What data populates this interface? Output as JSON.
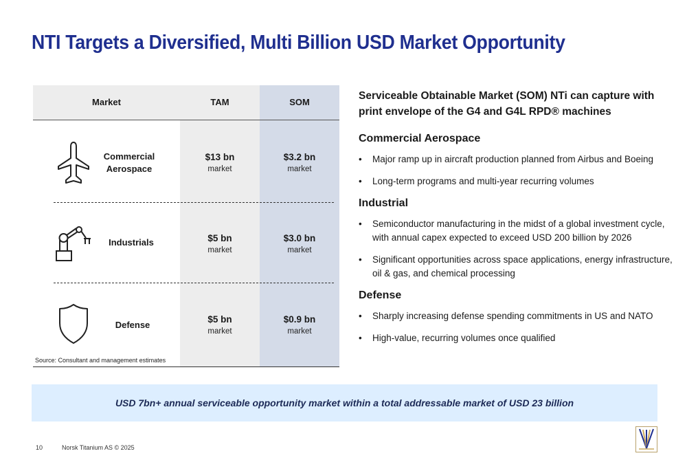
{
  "title": "NTI Targets a Diversified, Multi Billion USD Market Opportunity",
  "table": {
    "headers": {
      "market": "Market",
      "tam": "TAM",
      "som": "SOM"
    },
    "rows": [
      {
        "market": "Commercial Aerospace",
        "tam": "$13 bn",
        "tam_unit": "market",
        "som": "$3.2 bn",
        "som_unit": "market",
        "icon": "airplane-icon"
      },
      {
        "market": "Industrials",
        "tam": "$5 bn",
        "tam_unit": "market",
        "som": "$3.0 bn",
        "som_unit": "market",
        "icon": "robotic-arm-icon"
      },
      {
        "market": "Defense",
        "tam": "$5 bn",
        "tam_unit": "market",
        "som": "$0.9 bn",
        "som_unit": "market",
        "icon": "shield-icon"
      }
    ],
    "source": "Source: Consultant and management estimates"
  },
  "right": {
    "lead": "Serviceable Obtainable Market (SOM) NTi can capture with print envelope of the G4 and G4L RPD® machines",
    "sections": [
      {
        "heading": "Commercial Aerospace",
        "bullets": [
          "Major ramp up in aircraft production planned from Airbus and Boeing",
          "Long-term programs and multi-year recurring volumes"
        ]
      },
      {
        "heading": "Industrial",
        "bullets": [
          "Semiconductor manufacturing in the midst of a global investment cycle, with annual capex expected to exceed USD 200 billion by 2026",
          "Significant opportunities across space applications, energy infrastructure, oil & gas, and chemical processing"
        ]
      },
      {
        "heading": "Defense",
        "bullets": [
          "Sharply increasing defense spending commitments in US and NATO",
          "High-value, recurring volumes once qualified"
        ]
      }
    ]
  },
  "banner": "USD 7bn+ annual serviceable opportunity market within a total addressable market of USD 23 billion",
  "footer": {
    "page": "10",
    "copyright": "Norsk Titanium AS © 2025"
  },
  "colors": {
    "title": "#1f2f8f",
    "banner_bg": "#ddeeff",
    "som_col": "#d4dbe8",
    "tam_col": "#ededed"
  }
}
